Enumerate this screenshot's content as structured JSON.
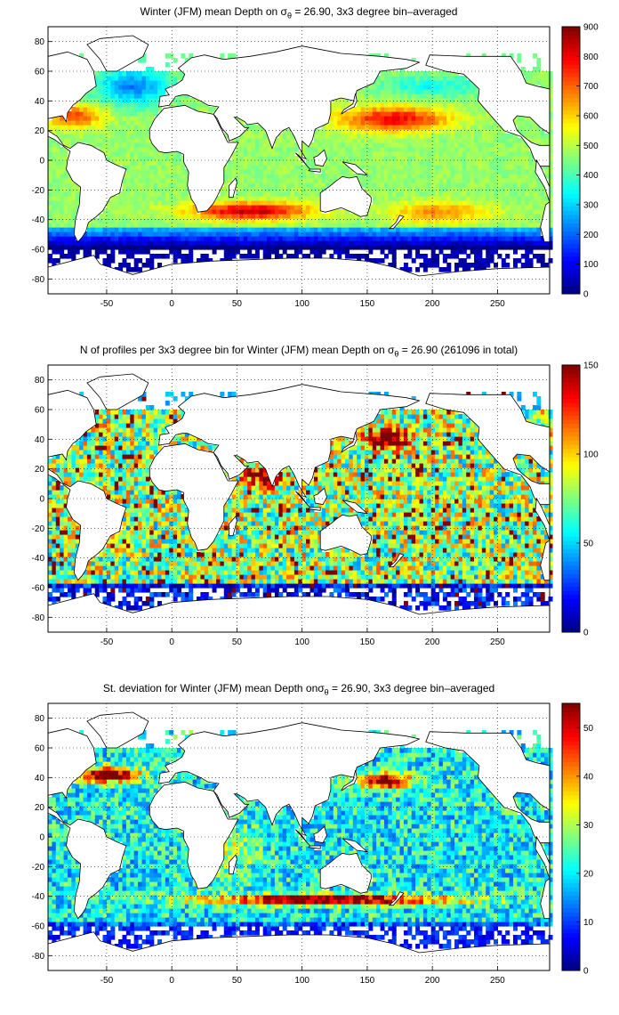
{
  "panels": [
    {
      "title_pre": "Winter (JFM) mean Depth on σ",
      "title_sub": "θ",
      "title_post": " = 26.90, 3x3 degree bin–averaged",
      "colorbar": {
        "min": 0,
        "max": 900,
        "ticks": [
          "0",
          "100",
          "200",
          "300",
          "400",
          "500",
          "600",
          "700",
          "800",
          "900"
        ]
      },
      "field": "depth"
    },
    {
      "title_pre": "N of profiles per 3x3 degree bin for Winter (JFM) mean Depth on σ",
      "title_sub": "θ",
      "title_post": " = 26.90 (261096 in total)",
      "colorbar": {
        "min": 0,
        "max": 150,
        "ticks": [
          "0",
          "50",
          "100",
          "150"
        ]
      },
      "field": "count"
    },
    {
      "title_pre": "St. deviation for Winter (JFM) mean Depth onσ",
      "title_sub": "θ",
      "title_post": " = 26.90, 3x3 degree bin–averaged",
      "colorbar": {
        "min": 0,
        "max": 55,
        "ticks": [
          "0",
          "10",
          "20",
          "30",
          "40",
          "50"
        ]
      },
      "field": "std"
    }
  ],
  "axes": {
    "xlim": [
      -95,
      290
    ],
    "ylim": [
      -90,
      90
    ],
    "xticks": [
      "-50",
      "0",
      "50",
      "100",
      "150",
      "200",
      "250"
    ],
    "yticks": [
      "80",
      "60",
      "40",
      "20",
      "0",
      "-20",
      "-40",
      "-60",
      "-80"
    ],
    "grid": "dotted",
    "colormap": "jet"
  }
}
